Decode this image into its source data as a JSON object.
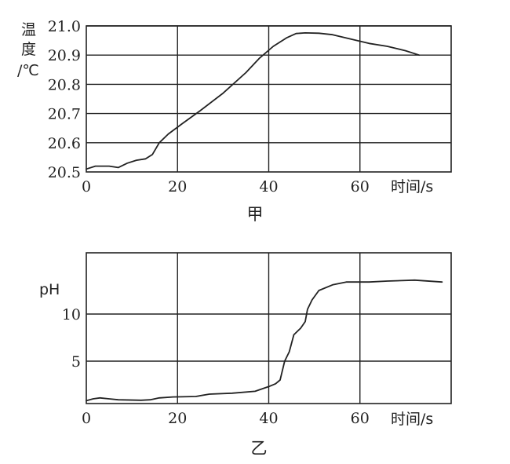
{
  "chart_data": [
    {
      "type": "line",
      "caption": "甲",
      "ylabel": "温度/℃",
      "ylabel_lines": [
        "温",
        "度",
        "/℃"
      ],
      "xlabel": "时间/s",
      "xlim": [
        0,
        80
      ],
      "ylim": [
        20.5,
        21.0
      ],
      "x_ticks": [
        "0",
        "20",
        "40",
        "60"
      ],
      "y_ticks": [
        "20.5",
        "20.6",
        "20.7",
        "20.8",
        "20.9",
        "21.0"
      ],
      "x_grid": [
        20,
        40,
        60
      ],
      "y_grid": [
        20.6,
        20.7,
        20.8,
        20.9,
        21.0
      ],
      "grid": true,
      "points": [
        [
          0,
          20.51
        ],
        [
          2,
          20.52
        ],
        [
          5,
          20.52
        ],
        [
          7,
          20.515
        ],
        [
          9,
          20.53
        ],
        [
          11,
          20.54
        ],
        [
          13,
          20.545
        ],
        [
          14.5,
          20.56
        ],
        [
          16,
          20.6
        ],
        [
          18,
          20.63
        ],
        [
          21,
          20.665
        ],
        [
          25,
          20.71
        ],
        [
          30,
          20.77
        ],
        [
          35,
          20.84
        ],
        [
          38,
          20.89
        ],
        [
          41,
          20.93
        ],
        [
          44,
          20.96
        ],
        [
          46,
          20.974
        ],
        [
          48,
          20.976
        ],
        [
          51,
          20.975
        ],
        [
          54,
          20.97
        ],
        [
          58,
          20.955
        ],
        [
          62,
          20.94
        ],
        [
          66,
          20.93
        ],
        [
          70,
          20.915
        ],
        [
          73,
          20.9
        ]
      ]
    },
    {
      "type": "line",
      "caption": "乙",
      "ylabel": "pH",
      "xlabel": "时间/s",
      "xlim": [
        0,
        80
      ],
      "ylim": [
        0.5,
        16.5
      ],
      "x_ticks": [
        "0",
        "20",
        "40",
        "60"
      ],
      "y_ticks": [
        "5",
        "10"
      ],
      "x_grid": [
        20,
        40,
        60
      ],
      "y_grid": [
        5,
        10
      ],
      "grid": true,
      "points": [
        [
          0,
          0.8
        ],
        [
          1.5,
          1.0
        ],
        [
          3,
          1.1
        ],
        [
          5,
          1.0
        ],
        [
          7,
          0.9
        ],
        [
          12,
          0.85
        ],
        [
          14,
          0.9
        ],
        [
          16,
          1.1
        ],
        [
          19,
          1.2
        ],
        [
          24,
          1.25
        ],
        [
          27,
          1.5
        ],
        [
          32,
          1.6
        ],
        [
          37,
          1.8
        ],
        [
          40,
          2.3
        ],
        [
          41.5,
          2.6
        ],
        [
          42.5,
          3.0
        ],
        [
          43,
          4.0
        ],
        [
          43.5,
          5.0
        ],
        [
          44.5,
          6.0
        ],
        [
          45.5,
          7.8
        ],
        [
          47,
          8.5
        ],
        [
          48,
          9.2
        ],
        [
          48.5,
          10.5
        ],
        [
          49.5,
          11.5
        ],
        [
          51,
          12.5
        ],
        [
          54,
          13.1
        ],
        [
          57,
          13.4
        ],
        [
          62,
          13.4
        ],
        [
          66,
          13.5
        ],
        [
          72,
          13.6
        ],
        [
          78,
          13.4
        ]
      ]
    }
  ]
}
